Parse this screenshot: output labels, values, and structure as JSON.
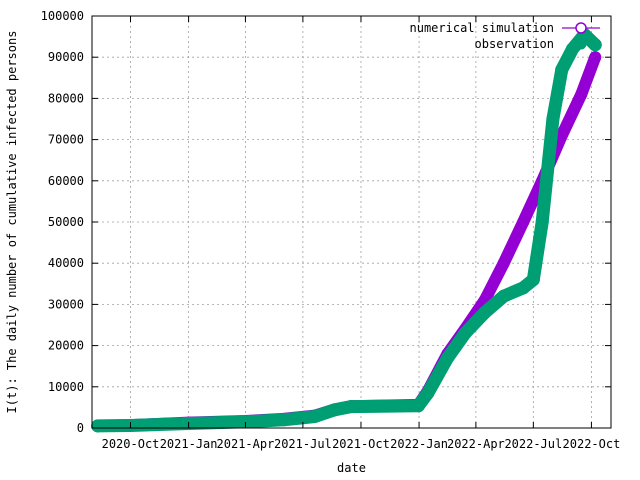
{
  "chart_data": {
    "type": "scatter",
    "xlabel": "date",
    "ylabel": "I(t): The daily number of cumulative infected persons",
    "x_range": [
      "2020-08-01",
      "2022-11-01"
    ],
    "ylim": [
      0,
      100000
    ],
    "y_ticks": [
      0,
      10000,
      20000,
      30000,
      40000,
      50000,
      60000,
      70000,
      80000,
      90000,
      100000
    ],
    "x_ticks": [
      {
        "date": "2020-10-01",
        "label": "2020-Oct"
      },
      {
        "date": "2021-01-01",
        "label": "2021-Jan"
      },
      {
        "date": "2021-04-01",
        "label": "2021-Apr"
      },
      {
        "date": "2021-07-01",
        "label": "2021-Jul"
      },
      {
        "date": "2021-10-01",
        "label": "2021-Oct"
      },
      {
        "date": "2022-01-01",
        "label": "2022-Jan"
      },
      {
        "date": "2022-04-01",
        "label": "2022-Apr"
      },
      {
        "date": "2022-07-01",
        "label": "2022-Jul"
      },
      {
        "date": "2022-10-01",
        "label": "2022-Oct"
      }
    ],
    "grid": true,
    "legend_position": "top-right",
    "series": [
      {
        "name": "numerical simulation",
        "color": "#9400d3",
        "marker": "open-circle",
        "points": [
          {
            "x": "2020-08-10",
            "y": 500
          },
          {
            "x": "2020-10-01",
            "y": 700
          },
          {
            "x": "2021-01-01",
            "y": 1300
          },
          {
            "x": "2021-04-01",
            "y": 1700
          },
          {
            "x": "2021-06-01",
            "y": 2200
          },
          {
            "x": "2021-07-20",
            "y": 3000
          },
          {
            "x": "2021-08-20",
            "y": 4500
          },
          {
            "x": "2021-09-15",
            "y": 5300
          },
          {
            "x": "2021-12-31",
            "y": 5600
          },
          {
            "x": "2022-01-15",
            "y": 9000
          },
          {
            "x": "2022-02-15",
            "y": 18000
          },
          {
            "x": "2022-03-15",
            "y": 24000
          },
          {
            "x": "2022-04-15",
            "y": 31000
          },
          {
            "x": "2022-05-15",
            "y": 40000
          },
          {
            "x": "2022-06-15",
            "y": 50000
          },
          {
            "x": "2022-07-15",
            "y": 60000
          },
          {
            "x": "2022-08-15",
            "y": 71000
          },
          {
            "x": "2022-09-15",
            "y": 81000
          },
          {
            "x": "2022-10-07",
            "y": 90000
          }
        ]
      },
      {
        "name": "observation",
        "color": "#009e73",
        "marker": "filled-circle",
        "points": [
          {
            "x": "2020-08-10",
            "y": 500
          },
          {
            "x": "2020-10-01",
            "y": 600
          },
          {
            "x": "2021-01-01",
            "y": 1100
          },
          {
            "x": "2021-04-01",
            "y": 1500
          },
          {
            "x": "2021-06-01",
            "y": 2000
          },
          {
            "x": "2021-07-20",
            "y": 2800
          },
          {
            "x": "2021-08-20",
            "y": 4400
          },
          {
            "x": "2021-09-15",
            "y": 5200
          },
          {
            "x": "2021-12-31",
            "y": 5400
          },
          {
            "x": "2022-01-15",
            "y": 8500
          },
          {
            "x": "2022-02-15",
            "y": 17000
          },
          {
            "x": "2022-03-15",
            "y": 23000
          },
          {
            "x": "2022-04-15",
            "y": 28000
          },
          {
            "x": "2022-05-15",
            "y": 32000
          },
          {
            "x": "2022-06-15",
            "y": 34000
          },
          {
            "x": "2022-07-01",
            "y": 36000
          },
          {
            "x": "2022-07-15",
            "y": 50000
          },
          {
            "x": "2022-08-01",
            "y": 75000
          },
          {
            "x": "2022-08-15",
            "y": 87000
          },
          {
            "x": "2022-09-01",
            "y": 92000
          },
          {
            "x": "2022-09-20",
            "y": 95500
          },
          {
            "x": "2022-10-07",
            "y": 93000
          }
        ]
      }
    ]
  }
}
